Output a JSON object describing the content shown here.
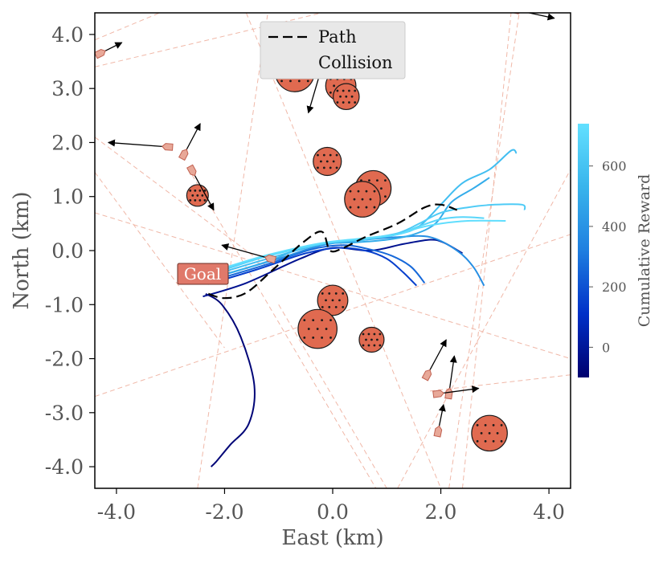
{
  "chart_data": {
    "type": "scatter",
    "xlabel": "East (km)",
    "ylabel": "North (km)",
    "xlim": [
      -4.4,
      4.4
    ],
    "ylim": [
      -4.4,
      4.4
    ],
    "xticks": [
      -4.0,
      -2.0,
      0.0,
      2.0,
      4.0
    ],
    "xtick_labels": [
      "-4.0",
      "-2.0",
      "0.0",
      "2.0",
      "4.0"
    ],
    "yticks": [
      -4,
      -3,
      -2,
      -1,
      0,
      1,
      2,
      3,
      4
    ],
    "ytick_labels": [
      "-4.0",
      "-3.0",
      "-2.0",
      "-1.0",
      "0.0",
      "1.0",
      "2.0",
      "3.0",
      "4.0"
    ],
    "legend": {
      "position": "top-center",
      "entries": [
        {
          "label": "Path",
          "style": "dashed-line"
        },
        {
          "label": "Collision",
          "style": "red-circle-marker"
        }
      ]
    },
    "goal": {
      "label": "Goal",
      "x": -2.75,
      "y": -0.45
    },
    "colorbar": {
      "label": "Cumulative Reward",
      "range": [
        -100,
        740
      ],
      "ticks": [
        0,
        200,
        400,
        600
      ],
      "tick_labels": [
        "0",
        "200",
        "400",
        "600"
      ],
      "colors": [
        "#00006e",
        "#0030c8",
        "#1f7fe0",
        "#38b4ec",
        "#62e0ff"
      ]
    },
    "obstacles": [
      {
        "x": -0.7,
        "y": 3.3,
        "r": 0.36
      },
      {
        "x": 0.15,
        "y": 3.05,
        "r": 0.28
      },
      {
        "x": 0.25,
        "y": 2.85,
        "r": 0.24
      },
      {
        "x": -0.1,
        "y": 1.65,
        "r": 0.26
      },
      {
        "x": 0.75,
        "y": 1.15,
        "r": 0.33
      },
      {
        "x": 0.55,
        "y": 0.95,
        "r": 0.33
      },
      {
        "x": -2.5,
        "y": 1.02,
        "r": 0.2
      },
      {
        "x": 0.0,
        "y": -0.92,
        "r": 0.28
      },
      {
        "x": -0.28,
        "y": -1.45,
        "r": 0.36
      },
      {
        "x": 0.72,
        "y": -1.65,
        "r": 0.23
      },
      {
        "x": 2.9,
        "y": -3.38,
        "r": 0.33
      }
    ],
    "path_dashed": {
      "x": [
        -2.3,
        -2.0,
        -1.6,
        -1.1,
        -0.55,
        -0.2,
        -0.05,
        0.2,
        0.6,
        1.2,
        1.7,
        2.0,
        2.3
      ],
      "y": [
        -0.8,
        -0.88,
        -0.78,
        -0.35,
        0.15,
        0.35,
        0.0,
        0.05,
        0.25,
        0.5,
        0.8,
        0.85,
        0.75
      ]
    },
    "series": [
      {
        "name": "trajectory-1",
        "reward": -80,
        "x": [
          -2.35,
          -2.05,
          -1.7,
          -1.45,
          -1.55,
          -1.9,
          -2.15,
          -2.25
        ],
        "y": [
          -0.8,
          -1.0,
          -1.6,
          -2.5,
          -3.2,
          -3.6,
          -3.9,
          -4.0
        ]
      },
      {
        "name": "trajectory-2",
        "reward": -20,
        "x": [
          -2.4,
          -1.6,
          -0.6,
          0.0,
          0.7,
          1.3,
          1.8,
          2.05,
          2.4
        ],
        "y": [
          -0.85,
          -0.6,
          -0.15,
          0.05,
          0.0,
          0.12,
          0.2,
          0.15,
          -0.05
        ]
      },
      {
        "name": "trajectory-3",
        "reward": 150,
        "x": [
          -2.3,
          -1.4,
          -0.5,
          0.1,
          0.6,
          1.0,
          1.3,
          1.55
        ],
        "y": [
          -0.62,
          -0.35,
          -0.05,
          0.05,
          0.0,
          -0.15,
          -0.4,
          -0.65
        ]
      },
      {
        "name": "trajectory-4",
        "reward": 260,
        "x": [
          -2.2,
          -1.2,
          -0.4,
          0.2,
          0.7,
          1.1,
          1.45,
          1.7
        ],
        "y": [
          -0.55,
          -0.25,
          0.02,
          0.1,
          0.02,
          -0.1,
          -0.3,
          -0.6
        ]
      },
      {
        "name": "trajectory-5",
        "reward": 380,
        "x": [
          -2.2,
          -1.0,
          -0.2,
          0.6,
          1.2,
          1.8,
          2.3,
          2.6,
          2.8
        ],
        "y": [
          -0.5,
          -0.15,
          0.1,
          0.2,
          0.25,
          0.25,
          0.0,
          -0.3,
          -0.65
        ]
      },
      {
        "name": "trajectory-6",
        "reward": 500,
        "x": [
          -2.2,
          -1.2,
          -0.4,
          0.4,
          1.0,
          1.5,
          1.9,
          2.2,
          2.6,
          2.9
        ],
        "y": [
          -0.5,
          -0.2,
          0.1,
          0.15,
          0.2,
          0.3,
          0.5,
          0.9,
          1.15,
          1.35
        ]
      },
      {
        "name": "trajectory-7",
        "reward": 580,
        "x": [
          -2.2,
          -1.2,
          -0.2,
          0.6,
          1.2,
          1.6,
          2.0,
          2.4,
          2.9,
          3.3,
          3.4
        ],
        "y": [
          -0.45,
          -0.15,
          0.12,
          0.2,
          0.3,
          0.45,
          0.85,
          1.25,
          1.5,
          1.85,
          1.8
        ]
      },
      {
        "name": "trajectory-8",
        "reward": 640,
        "x": [
          -2.2,
          -1.2,
          -0.2,
          0.6,
          1.2,
          1.6,
          2.0,
          2.5,
          3.0,
          3.5,
          3.55
        ],
        "y": [
          -0.42,
          -0.1,
          0.12,
          0.22,
          0.32,
          0.5,
          0.7,
          0.8,
          0.85,
          0.85,
          0.75
        ]
      },
      {
        "name": "trajectory-9",
        "reward": 690,
        "x": [
          -2.2,
          -1.2,
          -0.2,
          0.6,
          1.2,
          1.6,
          2.0,
          2.4,
          2.8
        ],
        "y": [
          -0.4,
          -0.1,
          0.13,
          0.22,
          0.3,
          0.45,
          0.58,
          0.62,
          0.6
        ]
      },
      {
        "name": "trajectory-10",
        "reward": 730,
        "x": [
          -2.2,
          -1.2,
          -0.2,
          0.6,
          1.2,
          1.6,
          2.0,
          2.5,
          3.2
        ],
        "y": [
          -0.38,
          -0.08,
          0.14,
          0.23,
          0.3,
          0.42,
          0.5,
          0.55,
          0.55
        ]
      }
    ],
    "vessels": [
      {
        "x": -3.05,
        "y": 1.92,
        "ax": -4.15,
        "ay": 2.0
      },
      {
        "x": -2.75,
        "y": 1.78,
        "ax": -2.45,
        "ay": 2.35
      },
      {
        "x": -2.6,
        "y": 1.48,
        "ax": -2.2,
        "ay": 0.75
      },
      {
        "x": -1.15,
        "y": -0.15,
        "ax": -2.05,
        "ay": 0.1
      },
      {
        "x": -0.2,
        "y": 3.4,
        "ax": -0.45,
        "ay": 2.55
      },
      {
        "x": -4.3,
        "y": 3.65,
        "ax": -3.9,
        "ay": 3.85
      },
      {
        "x": 3.4,
        "y": 4.45,
        "ax": 4.1,
        "ay": 4.3
      },
      {
        "x": 1.75,
        "y": -2.3,
        "ax": 2.1,
        "ay": -1.65
      },
      {
        "x": 2.15,
        "y": -2.65,
        "ax": 2.25,
        "ay": -1.95
      },
      {
        "x": 1.95,
        "y": -2.65,
        "ax": 2.7,
        "ay": -2.55
      },
      {
        "x": 1.95,
        "y": -3.35,
        "ax": 2.05,
        "ay": -2.85
      }
    ],
    "wake_lines": [
      [
        -4.4,
        3.4,
        -0.2,
        4.4
      ],
      [
        -4.4,
        3.9,
        -3.2,
        4.4
      ],
      [
        -4.4,
        1.45,
        -2.0,
        -1.8
      ],
      [
        -4.4,
        0.7,
        4.4,
        -2.0
      ],
      [
        -4.4,
        -2.7,
        4.4,
        0.3
      ],
      [
        -4.4,
        2.1,
        -1.2,
        -0.3
      ],
      [
        -2.5,
        -4.4,
        -1.2,
        4.4
      ],
      [
        -1.0,
        -1.0,
        1.0,
        -4.4
      ],
      [
        -1.6,
        4.4,
        2.0,
        -4.4
      ],
      [
        2.15,
        -4.4,
        3.45,
        4.4
      ],
      [
        2.4,
        -4.4,
        3.3,
        4.4
      ],
      [
        1.2,
        -4.4,
        4.4,
        1.5
      ],
      [
        1.8,
        -2.6,
        4.4,
        -2.3
      ],
      [
        -2.6,
        1.4,
        0.8,
        -4.4
      ]
    ]
  }
}
